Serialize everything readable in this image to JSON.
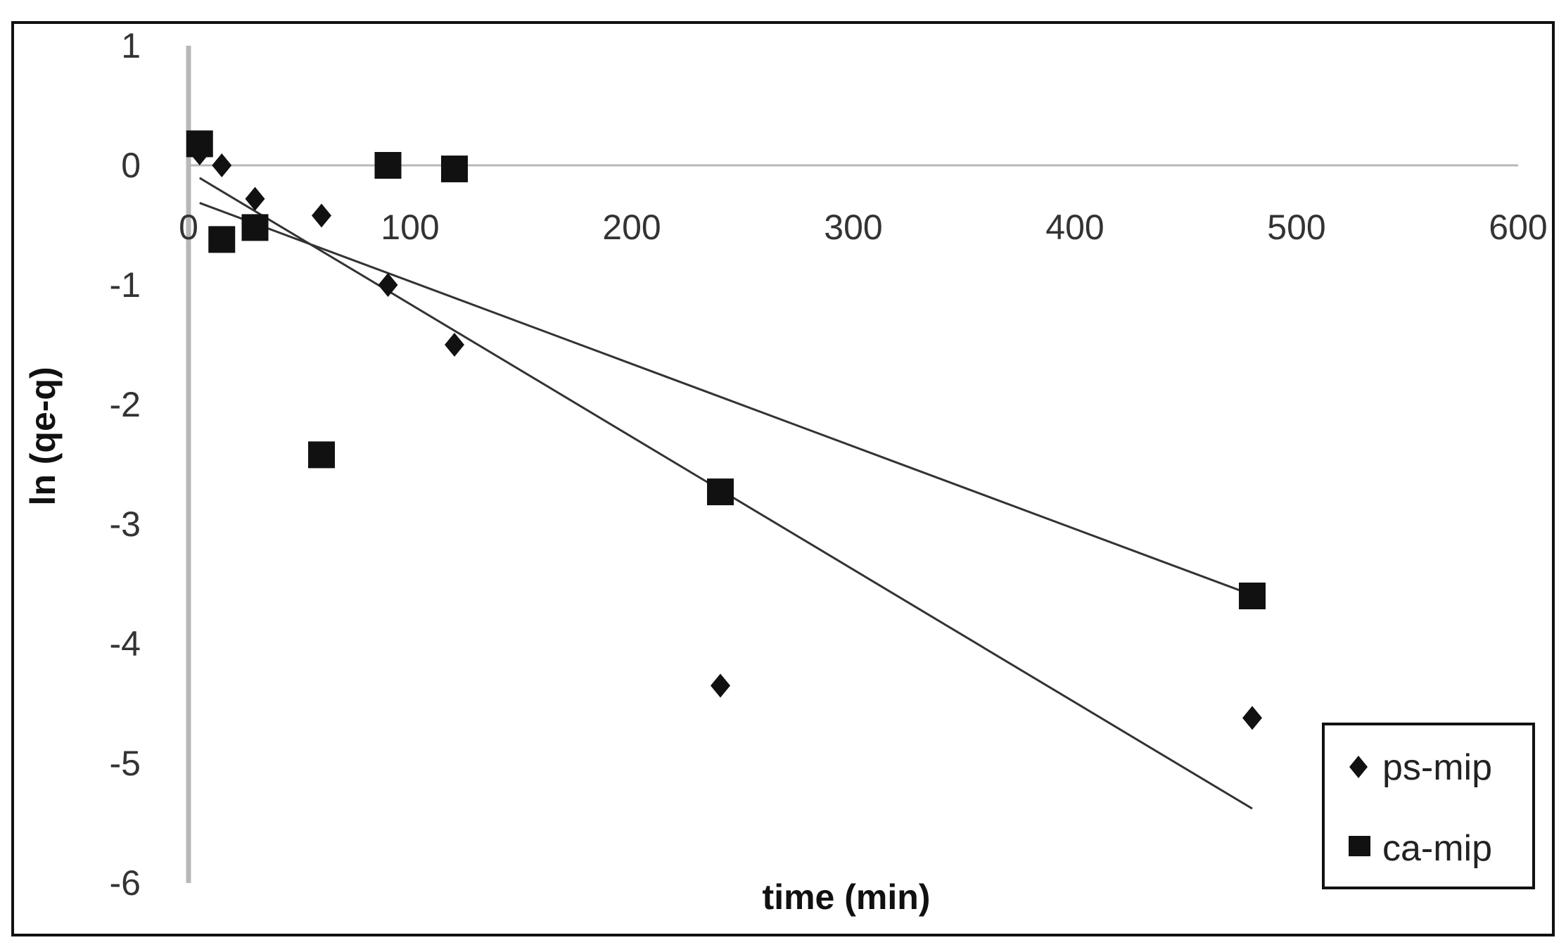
{
  "chart_data": {
    "type": "scatter",
    "title": "",
    "xlabel": "time (min)",
    "ylabel": "ln (qe-q)",
    "xlim": [
      0,
      600
    ],
    "ylim": [
      -6,
      1
    ],
    "x_ticks": [
      0,
      100,
      200,
      300,
      400,
      500,
      600
    ],
    "y_ticks": [
      1,
      0,
      -1,
      -2,
      -3,
      -4,
      -5,
      -6
    ],
    "grid": false,
    "legend": "bottom-right",
    "series": [
      {
        "name": "ps-mip",
        "marker": "diamond",
        "color": "#111111",
        "x": [
          5,
          15,
          30,
          60,
          90,
          120,
          240,
          480
        ],
        "y": [
          0.1,
          0.0,
          -0.28,
          -0.42,
          -1.0,
          -1.5,
          -4.35,
          -4.62
        ],
        "trendline": {
          "slope": -0.0111,
          "intercept": -0.05,
          "x_range": [
            5,
            480
          ]
        }
      },
      {
        "name": "ca-mip",
        "marker": "square",
        "color": "#111111",
        "x": [
          5,
          15,
          30,
          60,
          90,
          120,
          240,
          480
        ],
        "y": [
          0.18,
          -0.62,
          -0.52,
          -2.42,
          0.0,
          -0.03,
          -2.73,
          -3.6
        ],
        "trendline": {
          "slope": -0.0069,
          "intercept": -0.28,
          "x_range": [
            5,
            480
          ]
        }
      }
    ]
  }
}
